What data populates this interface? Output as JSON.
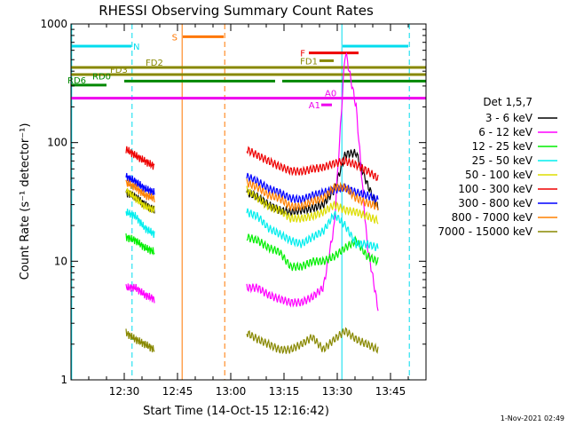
{
  "chart_data": {
    "type": "line",
    "title": "RHESSI Observing Summary Count Rates",
    "xlabel": "Start Time (14-Oct-15 12:16:42)",
    "ylabel": "Count Rate (s⁻¹ detector⁻¹)",
    "timestamp": "1-Nov-2021 02:49",
    "yscale": "log",
    "ylim": [
      1,
      1000
    ],
    "xlim": [
      -5,
      95
    ],
    "x_units": "minutes after 12:20",
    "y_ticks": [
      {
        "value": 1,
        "label": "1"
      },
      {
        "value": 10,
        "label": "10"
      },
      {
        "value": 100,
        "label": "100"
      },
      {
        "value": 1000,
        "label": "1000"
      }
    ],
    "x_ticks": [
      {
        "value": 10,
        "label": "12:30"
      },
      {
        "value": 25,
        "label": "12:45"
      },
      {
        "value": 40,
        "label": "13:00"
      },
      {
        "value": 55,
        "label": "13:15"
      },
      {
        "value": 70,
        "label": "13:30"
      },
      {
        "value": 85,
        "label": "13:45"
      }
    ],
    "legend": {
      "title": "Det 1,5,7",
      "placement": "right"
    },
    "data_windows": [
      [
        10.5,
        18.5
      ],
      [
        44.5,
        81.5
      ]
    ],
    "series": [
      {
        "name": "3 - 6 keV",
        "color": "#000000",
        "values": [
          38,
          35,
          30,
          27,
          26,
          27,
          28,
          30,
          40,
          80,
          82,
          45,
          28
        ]
      },
      {
        "name": "6 - 12 keV",
        "color": "#ff00ff",
        "values": [
          6,
          6,
          5.2,
          4.8,
          4.5,
          4.5,
          5,
          6,
          20,
          600,
          200,
          14,
          4
        ]
      },
      {
        "name": "12 - 25 keV",
        "color": "#00ee00",
        "values": [
          16,
          15,
          13,
          12,
          9,
          9,
          10,
          10,
          11,
          13,
          15,
          11,
          10
        ]
      },
      {
        "name": "25 - 50 keV",
        "color": "#00eeee",
        "values": [
          26,
          24,
          19,
          17,
          15,
          14,
          16,
          18,
          25,
          20,
          14,
          14,
          13
        ]
      },
      {
        "name": "50 - 100 keV",
        "color": "#dddd00",
        "values": [
          40,
          34,
          29,
          27,
          23,
          23,
          24,
          26,
          30,
          27,
          26,
          24,
          22
        ]
      },
      {
        "name": "100 - 300 keV",
        "color": "#ee0000",
        "values": [
          88,
          78,
          70,
          63,
          58,
          57,
          60,
          62,
          67,
          70,
          65,
          58,
          50
        ]
      },
      {
        "name": "300 - 800 keV",
        "color": "#0000ff",
        "values": [
          52,
          47,
          41,
          38,
          34,
          33,
          36,
          38,
          40,
          42,
          38,
          36,
          33
        ]
      },
      {
        "name": "800 - 7000 keV",
        "color": "#ff8000",
        "values": [
          46,
          42,
          36,
          34,
          29,
          29,
          32,
          34,
          42,
          42,
          34,
          31,
          29
        ]
      },
      {
        "name": "7000 - 15000 keV",
        "color": "#888800",
        "values": [
          2.5,
          2.2,
          2.0,
          1.8,
          1.8,
          2.0,
          2.3,
          1.8,
          2.2,
          2.6,
          2.2,
          2.0,
          1.8
        ]
      }
    ],
    "flags": [
      {
        "label": "N",
        "color": "#00ddee",
        "level": 650,
        "segments": [
          [
            -5,
            12
          ],
          [
            71.5,
            90
          ]
        ]
      },
      {
        "label": "S",
        "color": "#ff7700",
        "level": 780,
        "segments": [
          [
            26.5,
            38
          ]
        ]
      },
      {
        "label": "F",
        "color": "#ee0000",
        "level": 570,
        "segments": [
          [
            62,
            76
          ]
        ]
      },
      {
        "label": "FD1",
        "color": "#888800",
        "level": 490,
        "segments": [
          [
            65,
            69
          ]
        ]
      },
      {
        "label": "FD2",
        "color": "#888800",
        "level": 430,
        "segments": [
          [
            -5,
            95
          ]
        ]
      },
      {
        "label": "FD3",
        "color": "#888800",
        "level": 375,
        "segments": [
          [
            -5,
            95
          ]
        ]
      },
      {
        "label": "RD0",
        "color": "#008800",
        "level": 330,
        "segments": [
          [
            10,
            52.5
          ],
          [
            54.5,
            95
          ]
        ]
      },
      {
        "label": "RD6",
        "color": "#008800",
        "level": 305,
        "segments": [
          [
            -5,
            5
          ]
        ]
      },
      {
        "label": "A0",
        "color": "#ee00ee",
        "level": 237,
        "segments": [
          [
            -5,
            95
          ]
        ]
      },
      {
        "label": "A1",
        "color": "#ee00ee",
        "level": 208,
        "segments": [
          [
            65.5,
            68.5
          ]
        ]
      }
    ],
    "vertical_lines": [
      {
        "x": 26.3,
        "color": "#ff7700",
        "style": "solid"
      },
      {
        "x": 38.3,
        "color": "#ff7700",
        "style": "dashed"
      },
      {
        "x": -4.8,
        "color": "#00ddee",
        "style": "solid"
      },
      {
        "x": 12.2,
        "color": "#00ddee",
        "style": "dashed"
      },
      {
        "x": 71.3,
        "color": "#00ddee",
        "style": "solid"
      },
      {
        "x": 90.3,
        "color": "#00ddee",
        "style": "dashed"
      }
    ]
  }
}
